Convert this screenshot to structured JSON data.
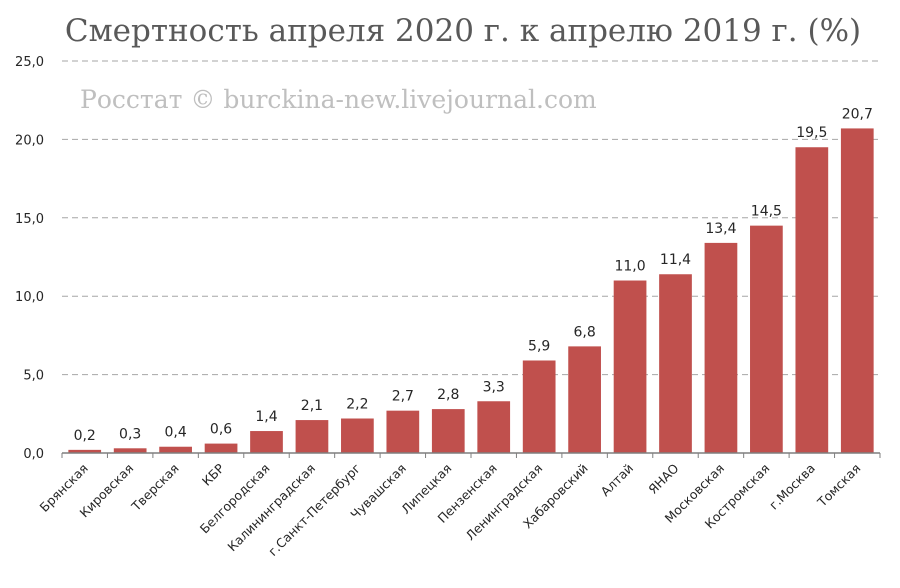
{
  "watermark": "Росстат © burckina-new.livejournal.com",
  "colors": {
    "bar": "#c0504d",
    "grid": "#a6a6a6",
    "axis": "#7f7f7f"
  },
  "chart_data": {
    "type": "bar",
    "title": "Смертность апреля 2020 г. к апрелю 2019 г. (%)",
    "xlabel": "",
    "ylabel": "",
    "ylim": [
      0,
      25
    ],
    "yticks": [
      "0,0",
      "5,0",
      "10,0",
      "15,0",
      "20,0",
      "25,0"
    ],
    "grid": true,
    "categories": [
      "Брянская",
      "Кировская",
      "Тверская",
      "КБР",
      "Белгородская",
      "Калининградская",
      "г.Санкт-Петербург",
      "Чувашская",
      "Липецкая",
      "Пензенская",
      "Ленинградская",
      "Хабаровский",
      "Алтай",
      "ЯНАО",
      "Московская",
      "Костромская",
      "г.Москва",
      "Томская"
    ],
    "values": [
      0.2,
      0.3,
      0.4,
      0.6,
      1.4,
      2.1,
      2.2,
      2.7,
      2.8,
      3.3,
      5.9,
      6.8,
      11.0,
      11.4,
      13.4,
      14.5,
      19.5,
      20.7
    ],
    "data_labels": [
      "0,2",
      "0,3",
      "0,4",
      "0,6",
      "1,4",
      "2,1",
      "2,2",
      "2,7",
      "2,8",
      "3,3",
      "5,9",
      "6,8",
      "11,0",
      "11,4",
      "13,4",
      "14,5",
      "19,5",
      "20,7"
    ]
  }
}
